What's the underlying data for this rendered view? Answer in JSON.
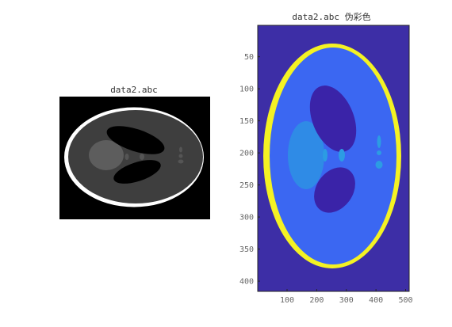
{
  "figure": {
    "background": "#ffffff"
  },
  "chart_data": [
    {
      "type": "heatmap",
      "title": "data2.abc",
      "colormap": "gray",
      "axes_visible": false,
      "image_size": [
        512,
        416
      ],
      "phantom": "Shepp-Logan"
    },
    {
      "type": "heatmap",
      "title": "data2.abc 伪彩色",
      "colormap": "parula",
      "axes_visible": true,
      "xlim": [
        1,
        512
      ],
      "ylim": [
        1,
        416
      ],
      "y_reversed": true,
      "x_tick_labels": [
        "100",
        "200",
        "300",
        "400",
        "500"
      ],
      "y_tick_labels": [
        "50",
        "100",
        "150",
        "200",
        "250",
        "300",
        "350",
        "400"
      ],
      "colors": {
        "background": "#3d2ea6",
        "outer_ring": "#f4f223",
        "body": "#3b67f2",
        "dark_lobes": "#3a23a8",
        "left_blob": "#2f8be6",
        "small_features": "#2c9ce3"
      }
    }
  ]
}
